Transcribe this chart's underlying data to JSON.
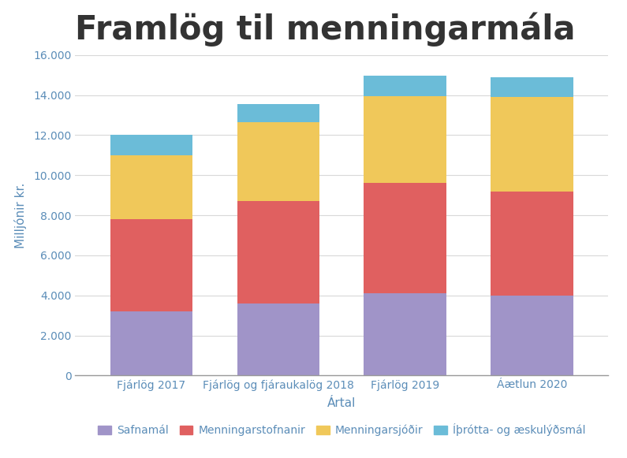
{
  "title": "Framlög til menningarmála",
  "categories": [
    "Fjárlög 2017",
    "Fjárlög og fjáraukalög 2018",
    "Fjárlög 2019",
    "Áætlun 2020"
  ],
  "series": {
    "Safnamál": [
      3200,
      3600,
      4100,
      4000
    ],
    "Menningarstofnanir": [
      4600,
      5100,
      5500,
      5200
    ],
    "Menningarsjóðir": [
      3200,
      3950,
      4350,
      4700
    ],
    "Íþrótta- og æskulýðsmál": [
      1000,
      900,
      1000,
      1000
    ]
  },
  "colors": {
    "Safnamál": "#a094c8",
    "Menningarstofnanir": "#e06060",
    "Menningarsjóðir": "#f0c85a",
    "Íþrótta- og æskulýðsmál": "#6bbcd8"
  },
  "ylabel": "Milljónir kr.",
  "xlabel": "Ártal",
  "ylim": [
    0,
    16000
  ],
  "yticks": [
    0,
    2000,
    4000,
    6000,
    8000,
    10000,
    12000,
    14000,
    16000
  ],
  "ytick_labels": [
    "0",
    "2.000",
    "4.000",
    "6.000",
    "8.000",
    "10.000",
    "12.000",
    "14.000",
    "16.000"
  ],
  "title_fontsize": 30,
  "axis_label_fontsize": 11,
  "tick_fontsize": 10,
  "legend_fontsize": 10,
  "background_color": "#ffffff",
  "grid_color": "#d8d8d8",
  "bar_width": 0.65,
  "title_color": "#333333",
  "tick_color": "#5b8db8"
}
